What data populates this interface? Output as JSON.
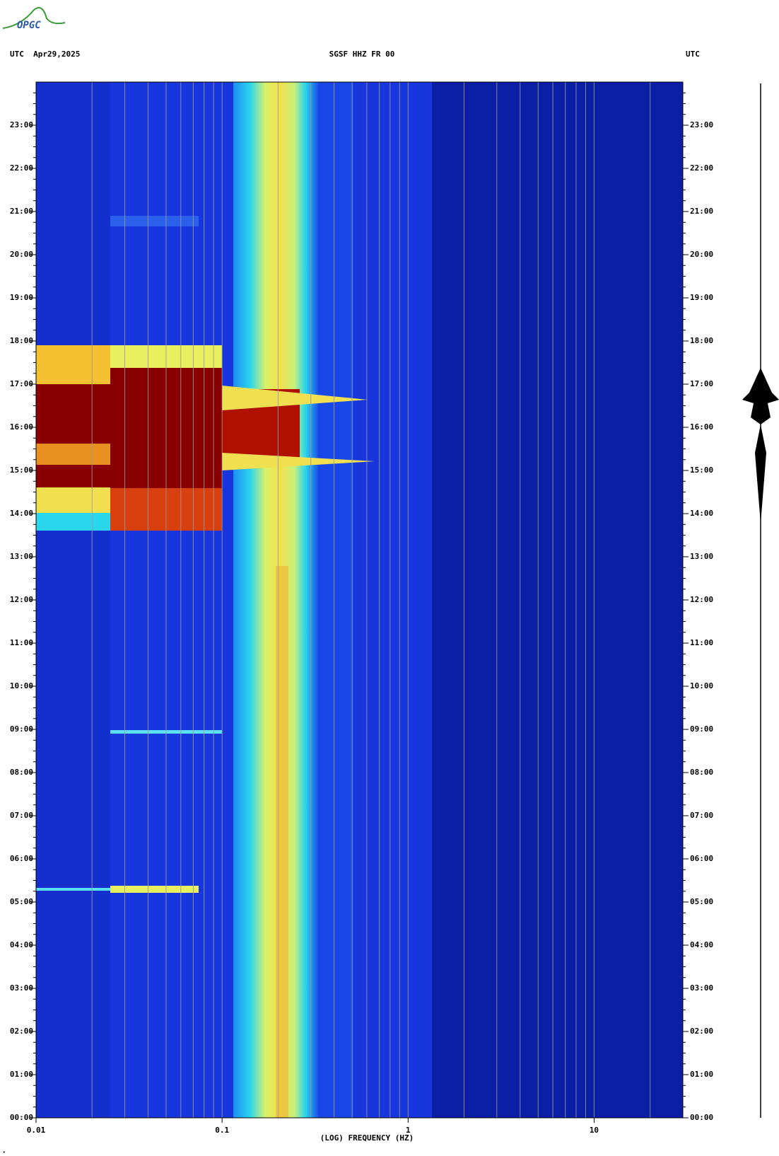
{
  "logo": "OPGC",
  "chart_data": {
    "type": "spectrogram",
    "title_left": "UTC  Apr29,2025",
    "title": "SGSF HHZ FR 00",
    "title_right": "UTC",
    "x_label": "(LOG) FREQUENCY (HZ)",
    "xscale": "log",
    "xlim": [
      0.01,
      30
    ],
    "xticks": [
      0.01,
      0.1,
      1,
      10
    ],
    "grid": true,
    "ylim": [
      0,
      24
    ],
    "yticks": [
      {
        "value": 0,
        "label": "00:00"
      },
      {
        "value": 1,
        "label": "01:00"
      },
      {
        "value": 2,
        "label": "02:00"
      },
      {
        "value": 3,
        "label": "03:00"
      },
      {
        "value": 4,
        "label": "04:00"
      },
      {
        "value": 5,
        "label": "05:00"
      },
      {
        "value": 6,
        "label": "06:00"
      },
      {
        "value": 7,
        "label": "07:00"
      },
      {
        "value": 8,
        "label": "08:00"
      },
      {
        "value": 9,
        "label": "09:00"
      },
      {
        "value": 10,
        "label": "10:00"
      },
      {
        "value": 11,
        "label": "11:00"
      },
      {
        "value": 12,
        "label": "12:00"
      },
      {
        "value": 13,
        "label": "13:00"
      },
      {
        "value": 14,
        "label": "14:00"
      },
      {
        "value": 15,
        "label": "15:00"
      },
      {
        "value": 16,
        "label": "16:00"
      },
      {
        "value": 17,
        "label": "17:00"
      },
      {
        "value": 18,
        "label": "18:00"
      },
      {
        "value": 19,
        "label": "19:00"
      },
      {
        "value": 20,
        "label": "20:00"
      },
      {
        "value": 21,
        "label": "21:00"
      },
      {
        "value": 22,
        "label": "22:00"
      },
      {
        "value": 23,
        "label": "23:00"
      }
    ]
  }
}
